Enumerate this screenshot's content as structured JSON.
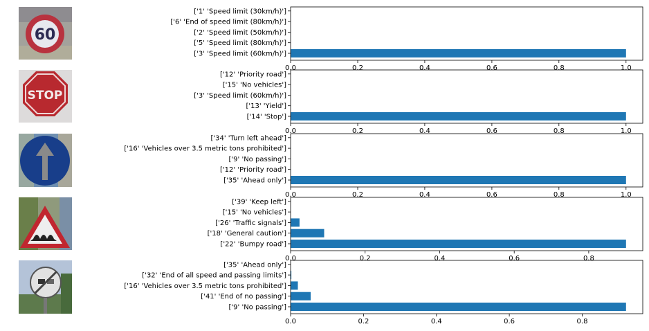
{
  "chart_data": [
    {
      "type": "bar",
      "orientation": "horizontal",
      "image": "speed-limit-60-sign",
      "categories": [
        "['1' 'Speed limit (30km/h)']",
        "['6' 'End of speed limit (80km/h)']",
        "['2' 'Speed limit (50km/h)']",
        "['5' 'Speed limit (80km/h)']",
        "['3' 'Speed limit (60km/h)']"
      ],
      "values": [
        0.0,
        0.0,
        0.0,
        0.0,
        1.0
      ],
      "xlim": [
        0,
        1.05
      ],
      "xticks": [
        0.0,
        0.2,
        0.4,
        0.6,
        0.8,
        1.0
      ],
      "xtick_labels": [
        "0.0",
        "0.2",
        "0.4",
        "0.6",
        "0.8",
        "1.0"
      ],
      "title": "",
      "xlabel": "",
      "ylabel": ""
    },
    {
      "type": "bar",
      "orientation": "horizontal",
      "image": "stop-sign",
      "categories": [
        "['12' 'Priority road']",
        "['15' 'No vehicles']",
        "['3' 'Speed limit (60km/h)']",
        "['13' 'Yield']",
        "['14' 'Stop']"
      ],
      "values": [
        0.0,
        0.0,
        0.0,
        0.0,
        1.0
      ],
      "xlim": [
        0,
        1.05
      ],
      "xticks": [
        0.0,
        0.2,
        0.4,
        0.6,
        0.8,
        1.0
      ],
      "xtick_labels": [
        "0.0",
        "0.2",
        "0.4",
        "0.6",
        "0.8",
        "1.0"
      ],
      "title": "",
      "xlabel": "",
      "ylabel": ""
    },
    {
      "type": "bar",
      "orientation": "horizontal",
      "image": "ahead-only-sign",
      "categories": [
        "['34' 'Turn left ahead']",
        "['16' 'Vehicles over 3.5 metric tons prohibited']",
        "['9' 'No passing']",
        "['12' 'Priority road']",
        "['35' 'Ahead only']"
      ],
      "values": [
        0.0,
        0.0,
        0.0,
        0.0,
        1.0
      ],
      "xlim": [
        0,
        1.05
      ],
      "xticks": [
        0.0,
        0.2,
        0.4,
        0.6,
        0.8,
        1.0
      ],
      "xtick_labels": [
        "0.0",
        "0.2",
        "0.4",
        "0.6",
        "0.8",
        "1.0"
      ],
      "title": "",
      "xlabel": "",
      "ylabel": ""
    },
    {
      "type": "bar",
      "orientation": "horizontal",
      "image": "bumpy-road-sign",
      "categories": [
        "['39' 'Keep left']",
        "['15' 'No vehicles']",
        "['26' 'Traffic signals']",
        "['18' 'General caution']",
        "['22' 'Bumpy road']"
      ],
      "values": [
        0.0,
        0.0,
        0.024,
        0.09,
        0.9
      ],
      "xlim": [
        0,
        0.945
      ],
      "xticks": [
        0.0,
        0.2,
        0.4,
        0.6,
        0.8
      ],
      "xtick_labels": [
        "0.0",
        "0.2",
        "0.4",
        "0.6",
        "0.8"
      ],
      "title": "",
      "xlabel": "",
      "ylabel": ""
    },
    {
      "type": "bar",
      "orientation": "horizontal",
      "image": "end-of-no-passing-sign",
      "categories": [
        "['35' 'Ahead only']",
        "['32' 'End of all speed and passing limits']",
        "['16' 'Vehicles over 3.5 metric tons prohibited']",
        "['41' 'End of no passing']",
        "['9' 'No passing']"
      ],
      "values": [
        0.0,
        0.002,
        0.02,
        0.055,
        0.92
      ],
      "xlim": [
        0,
        0.966
      ],
      "xticks": [
        0.0,
        0.2,
        0.4,
        0.6,
        0.8
      ],
      "xtick_labels": [
        "0.0",
        "0.2",
        "0.4",
        "0.6",
        "0.8"
      ],
      "title": "",
      "xlabel": "",
      "ylabel": ""
    }
  ],
  "colors": {
    "bar": "#1f77b4",
    "axis": "#000000",
    "text": "#000000"
  }
}
